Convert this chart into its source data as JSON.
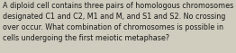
{
  "text": "A diploid cell contains three pairs of homologous chromosomes\ndesignated C1 and C2, M1 and M, and S1 and S2. No crossing\nover occur. What combination of chromosomes is possible in\ncells undergoing the first meiotic metaphase?",
  "background_color": "#d0ccbe",
  "text_color": "#1a1a1a",
  "font_size": 5.8,
  "fig_width": 2.62,
  "fig_height": 0.59,
  "dpi": 100
}
